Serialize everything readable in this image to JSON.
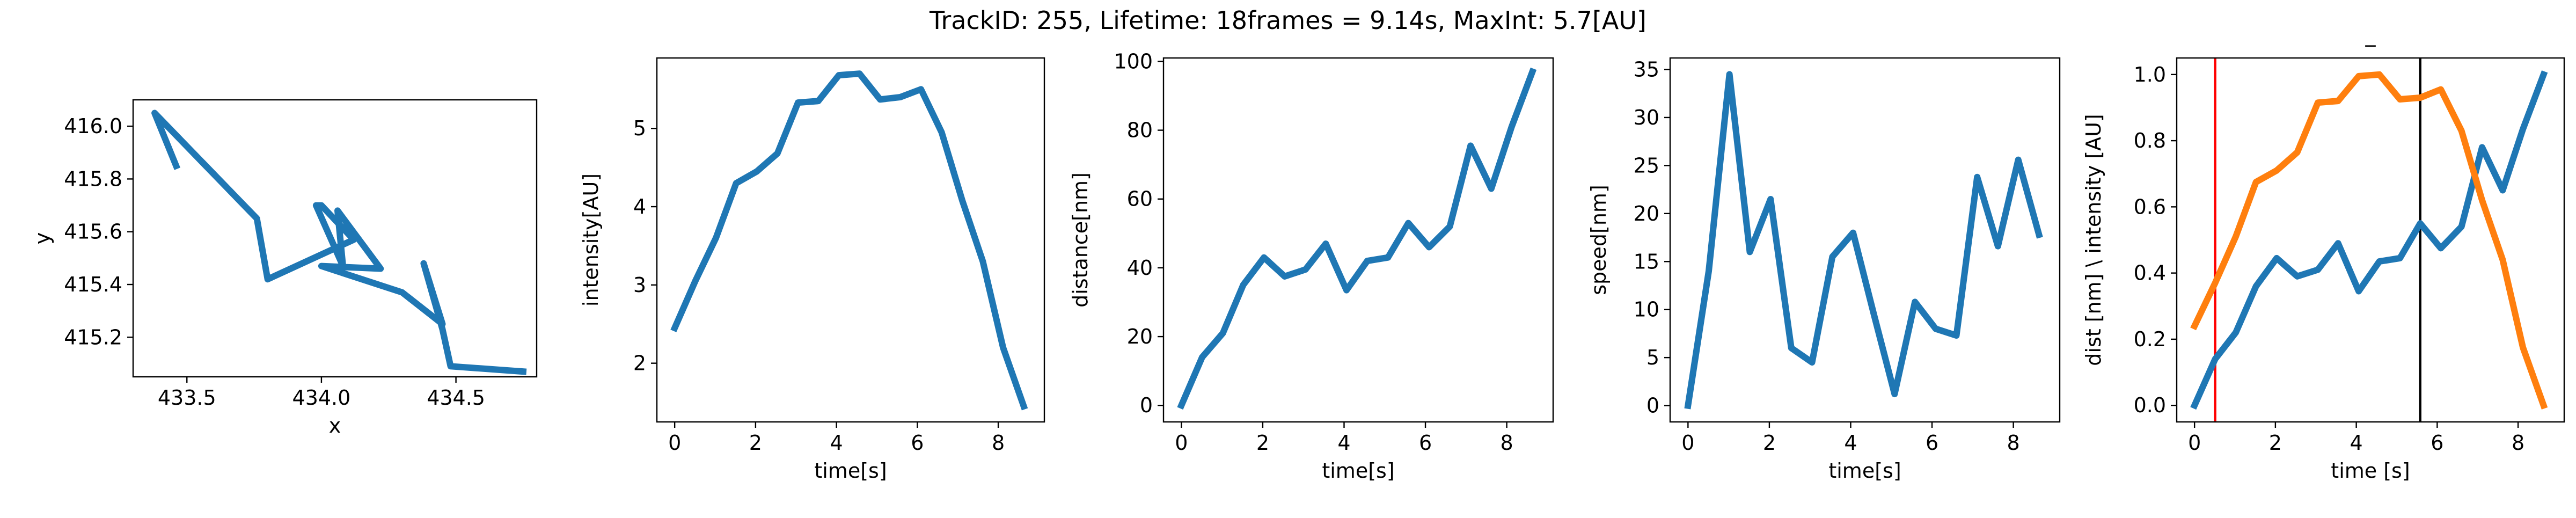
{
  "figure": {
    "suptitle": "TrackID: 255, Lifetime: 18frames = 9.14s, MaxInt: 5.7[AU]"
  },
  "colors": {
    "blue": "#1f77b4",
    "orange": "#ff7f0e",
    "red": "#ff0000",
    "black": "#000000"
  },
  "chart_data": [
    {
      "type": "line",
      "title": "",
      "xlabel": "x",
      "ylabel": "y",
      "xlim": [
        433.3,
        434.8
      ],
      "ylim": [
        415.05,
        416.1
      ],
      "xticks": [
        433.5,
        434.0,
        434.5
      ],
      "xtick_labels": [
        "433.5",
        "434.0",
        "434.5"
      ],
      "yticks": [
        415.2,
        415.4,
        415.6,
        415.8,
        416.0
      ],
      "ytick_labels": [
        "415.2",
        "415.4",
        "415.6",
        "415.8",
        "416.0"
      ],
      "grid": false,
      "series": [
        {
          "color": "#1f77b4",
          "x": [
            433.46,
            433.38,
            433.76,
            433.8,
            434.12,
            434.12,
            434.0,
            433.98,
            434.08,
            434.06,
            434.22,
            434.0,
            434.3,
            434.45,
            434.38,
            434.45,
            434.48,
            434.75
          ],
          "y": [
            415.85,
            416.05,
            415.65,
            415.42,
            415.57,
            415.57,
            415.7,
            415.7,
            415.47,
            415.68,
            415.46,
            415.47,
            415.37,
            415.25,
            415.48,
            415.23,
            415.09,
            415.07
          ]
        }
      ]
    },
    {
      "type": "line",
      "title": "",
      "xlabel": "time[s]",
      "ylabel": "intensity[AU]",
      "xlim": [
        -0.44,
        9.14
      ],
      "ylim": [
        1.25,
        5.9
      ],
      "xticks": [
        0,
        2,
        4,
        6,
        8
      ],
      "xtick_labels": [
        "0",
        "2",
        "4",
        "6",
        "8"
      ],
      "yticks": [
        2,
        3,
        4,
        5
      ],
      "ytick_labels": [
        "2",
        "3",
        "4",
        "5"
      ],
      "grid": false,
      "series": [
        {
          "color": "#1f77b4",
          "x": [
            0,
            0.51,
            1.02,
            1.52,
            2.03,
            2.54,
            3.05,
            3.55,
            4.06,
            4.57,
            5.08,
            5.58,
            6.09,
            6.6,
            7.11,
            7.62,
            8.12,
            8.63
          ],
          "y": [
            2.45,
            3.05,
            3.6,
            4.3,
            4.45,
            4.68,
            5.33,
            5.35,
            5.68,
            5.7,
            5.37,
            5.4,
            5.5,
            4.95,
            4.08,
            3.3,
            2.2,
            1.45
          ]
        }
      ]
    },
    {
      "type": "line",
      "title": "",
      "xlabel": "time[s]",
      "ylabel": "distance[nm]",
      "xlim": [
        -0.44,
        9.14
      ],
      "ylim": [
        -4.8,
        101
      ],
      "xticks": [
        0,
        2,
        4,
        6,
        8
      ],
      "xtick_labels": [
        "0",
        "2",
        "4",
        "6",
        "8"
      ],
      "yticks": [
        0,
        20,
        40,
        60,
        80,
        100
      ],
      "ytick_labels": [
        "0",
        "20",
        "40",
        "60",
        "80",
        "100"
      ],
      "grid": false,
      "series": [
        {
          "color": "#1f77b4",
          "x": [
            0,
            0.51,
            1.02,
            1.52,
            2.03,
            2.54,
            3.05,
            3.55,
            4.06,
            4.57,
            5.08,
            5.58,
            6.09,
            6.6,
            7.11,
            7.62,
            8.12,
            8.63
          ],
          "y": [
            0,
            14,
            21,
            35,
            43,
            37.5,
            39.5,
            47,
            33.5,
            42,
            43,
            53,
            46,
            52,
            75.5,
            63,
            81,
            97
          ]
        }
      ]
    },
    {
      "type": "line",
      "title": "",
      "xlabel": "time[s]",
      "ylabel": "speed[nm]",
      "xlim": [
        -0.44,
        9.14
      ],
      "ylim": [
        -1.7,
        36.2
      ],
      "xticks": [
        0,
        2,
        4,
        6,
        8
      ],
      "xtick_labels": [
        "0",
        "2",
        "4",
        "6",
        "8"
      ],
      "yticks": [
        0,
        5,
        10,
        15,
        20,
        25,
        30,
        35
      ],
      "ytick_labels": [
        "0",
        "5",
        "10",
        "15",
        "20",
        "25",
        "30",
        "35"
      ],
      "grid": false,
      "series": [
        {
          "color": "#1f77b4",
          "x": [
            0,
            0.51,
            1.02,
            1.52,
            2.03,
            2.54,
            3.05,
            3.55,
            4.06,
            4.57,
            5.08,
            5.58,
            6.09,
            6.6,
            7.11,
            7.62,
            8.12,
            8.63
          ],
          "y": [
            0,
            14,
            34.5,
            16,
            21.5,
            6,
            4.5,
            15.5,
            18,
            9.5,
            1.2,
            10.8,
            8,
            7.3,
            23.8,
            16.6,
            25.6,
            17.8
          ]
        }
      ]
    },
    {
      "type": "line",
      "title": "_",
      "xlabel": "time [s]",
      "ylabel": "dist [nm] \\ intensity [AU]",
      "xlim": [
        -0.44,
        9.14
      ],
      "ylim": [
        -0.05,
        1.05
      ],
      "xticks": [
        0,
        2,
        4,
        6,
        8
      ],
      "xtick_labels": [
        "0",
        "2",
        "4",
        "6",
        "8"
      ],
      "yticks": [
        0.0,
        0.2,
        0.4,
        0.6,
        0.8,
        1.0
      ],
      "ytick_labels": [
        "0.0",
        "0.2",
        "0.4",
        "0.6",
        "0.8",
        "1.0"
      ],
      "grid": false,
      "vlines": [
        {
          "x": 0.51,
          "color": "#ff0000"
        },
        {
          "x": 5.58,
          "color": "#000000"
        }
      ],
      "series": [
        {
          "color": "#1f77b4",
          "x": [
            0,
            0.51,
            1.02,
            1.52,
            2.03,
            2.54,
            3.05,
            3.55,
            4.06,
            4.57,
            5.08,
            5.58,
            6.09,
            6.6,
            7.11,
            7.62,
            8.12,
            8.63
          ],
          "y": [
            0,
            0.14,
            0.22,
            0.36,
            0.445,
            0.39,
            0.41,
            0.49,
            0.345,
            0.435,
            0.445,
            0.55,
            0.475,
            0.54,
            0.78,
            0.65,
            0.835,
            1.0
          ]
        },
        {
          "color": "#ff7f0e",
          "x": [
            0,
            0.51,
            1.02,
            1.52,
            2.03,
            2.54,
            3.05,
            3.55,
            4.06,
            4.57,
            5.08,
            5.58,
            6.09,
            6.6,
            7.11,
            7.62,
            8.12,
            8.63
          ],
          "y": [
            0.24,
            0.37,
            0.51,
            0.675,
            0.71,
            0.765,
            0.915,
            0.92,
            0.995,
            1.0,
            0.925,
            0.93,
            0.955,
            0.83,
            0.62,
            0.44,
            0.175,
            0.0
          ]
        }
      ]
    }
  ]
}
